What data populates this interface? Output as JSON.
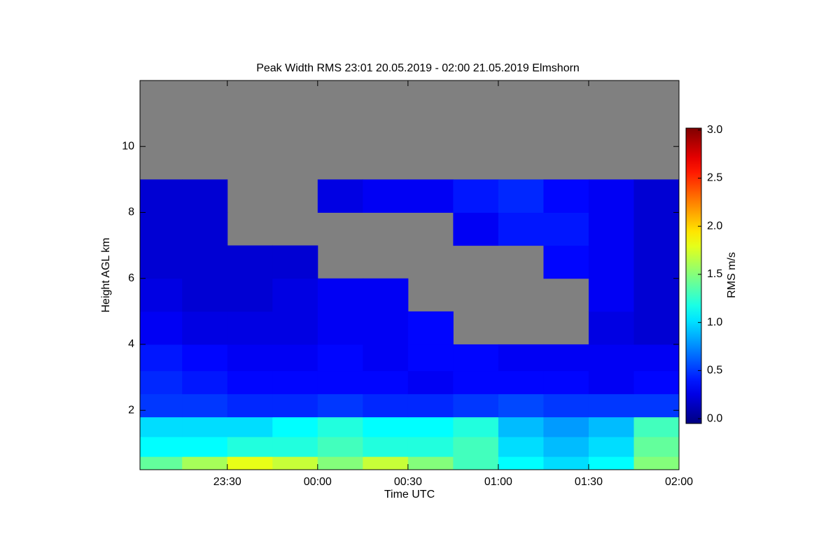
{
  "chart_data": {
    "type": "heatmap",
    "title": "Peak Width RMS   23:01 20.05.2019 - 02:00 21.05.2019 Elmshorn",
    "x_label": "Time UTC",
    "y_label": "Height AGL km",
    "colorbar_label": "RMS m/s",
    "colormap": "jet",
    "missing_color": "#808080",
    "xlim": [
      23.0167,
      26
    ],
    "xticks": [
      {
        "value": 23.5,
        "label": "23:30"
      },
      {
        "value": 24,
        "label": "00:00"
      },
      {
        "value": 24.5,
        "label": "00:30"
      },
      {
        "value": 25,
        "label": "01:00"
      },
      {
        "value": 25.5,
        "label": "01:30"
      },
      {
        "value": 26,
        "label": "02:00"
      }
    ],
    "ylim": [
      0.2,
      12
    ],
    "yticks": [
      2,
      4,
      6,
      8,
      10
    ],
    "clim": [
      -0.05,
      3.02
    ],
    "cticks": [
      {
        "value": 0,
        "label": "0.0"
      },
      {
        "value": 0.5,
        "label": "0.5"
      },
      {
        "value": 1,
        "label": "1.0"
      },
      {
        "value": 1.5,
        "label": "1.5"
      },
      {
        "value": 2,
        "label": "2.0"
      },
      {
        "value": 2.5,
        "label": "2.5"
      },
      {
        "value": 3,
        "label": "3.0"
      }
    ],
    "x_edges": [
      23.0167,
      23.25,
      23.5,
      23.75,
      24,
      24.25,
      24.5,
      24.75,
      25,
      25.25,
      25.5,
      25.75,
      26
    ],
    "y_edges": [
      0.2,
      0.6,
      1.2,
      1.8,
      2.5,
      3.2,
      4,
      5,
      6,
      7,
      8,
      9,
      12
    ],
    "z": [
      [
        1.4,
        1.6,
        1.8,
        1.7,
        1.5,
        1.7,
        1.5,
        1.3,
        1.1,
        1.0,
        1.1,
        1.5
      ],
      [
        1.1,
        1.1,
        1.2,
        1.2,
        1.3,
        1.2,
        1.2,
        1.3,
        1.0,
        0.9,
        1.0,
        1.4
      ],
      [
        1.0,
        1.0,
        1.0,
        1.1,
        1.2,
        1.1,
        1.1,
        1.2,
        0.9,
        0.8,
        0.9,
        1.3
      ],
      [
        0.5,
        0.5,
        0.45,
        0.45,
        0.5,
        0.45,
        0.45,
        0.5,
        0.55,
        0.5,
        0.5,
        0.5
      ],
      [
        0.45,
        0.4,
        0.35,
        0.35,
        0.35,
        0.35,
        0.3,
        0.35,
        0.35,
        0.35,
        0.3,
        0.35
      ],
      [
        0.4,
        0.35,
        0.3,
        0.3,
        0.35,
        0.3,
        0.35,
        0.35,
        0.3,
        0.3,
        0.3,
        0.3
      ],
      [
        0.3,
        0.25,
        0.25,
        0.25,
        0.3,
        0.3,
        0.35,
        null,
        null,
        null,
        0.25,
        0.2
      ],
      [
        0.25,
        0.2,
        0.2,
        0.25,
        0.3,
        0.3,
        null,
        null,
        null,
        null,
        0.3,
        0.2
      ],
      [
        0.2,
        0.2,
        0.2,
        0.2,
        null,
        null,
        null,
        null,
        null,
        0.35,
        0.3,
        0.2
      ],
      [
        0.2,
        0.2,
        null,
        null,
        null,
        null,
        null,
        0.3,
        0.4,
        0.4,
        0.3,
        0.2
      ],
      [
        0.2,
        0.2,
        null,
        null,
        0.25,
        0.3,
        0.3,
        0.4,
        0.45,
        0.35,
        0.3,
        0.2
      ],
      [
        null,
        null,
        null,
        null,
        null,
        null,
        null,
        null,
        null,
        null,
        null,
        null
      ]
    ]
  }
}
